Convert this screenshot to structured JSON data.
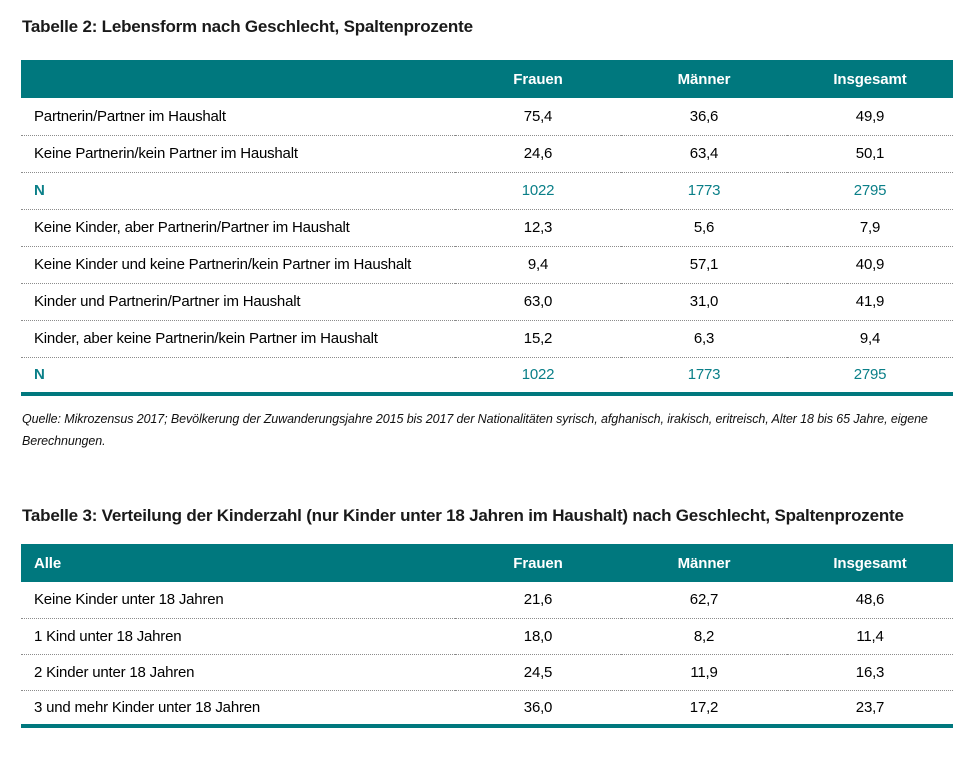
{
  "theme": {
    "accent": "#00787e",
    "n_value_color": "#0a7f88",
    "header_text": "#ffffff"
  },
  "table2": {
    "title": "Tabelle 2: Lebensform nach Geschlecht, Spaltenprozente",
    "columns": [
      "",
      "Frauen",
      "Männer",
      "Insgesamt"
    ],
    "rows": [
      {
        "label": "Partnerin/Partner im Haushalt",
        "frauen": "75,4",
        "maenner": "36,6",
        "insgesamt": "49,9"
      },
      {
        "label": "Keine Partnerin/kein Partner im Haushalt",
        "frauen": "24,6",
        "maenner": "63,4",
        "insgesamt": "50,1"
      },
      {
        "label": "N",
        "frauen": "1022",
        "maenner": "1773",
        "insgesamt": "2795"
      },
      {
        "label": "Keine Kinder, aber Partnerin/Partner im Haushalt",
        "frauen": "12,3",
        "maenner": "5,6",
        "insgesamt": "7,9"
      },
      {
        "label": "Keine Kinder und keine Partnerin/kein Partner im Haushalt",
        "frauen": "9,4",
        "maenner": "57,1",
        "insgesamt": "40,9"
      },
      {
        "label": "Kinder und Partnerin/Partner im Haushalt",
        "frauen": "63,0",
        "maenner": "31,0",
        "insgesamt": "41,9"
      },
      {
        "label": "Kinder, aber keine Partnerin/kein Partner im Haushalt",
        "frauen": "15,2",
        "maenner": "6,3",
        "insgesamt": "9,4"
      },
      {
        "label": "N",
        "frauen": "1022",
        "maenner": "1773",
        "insgesamt": "2795"
      }
    ],
    "source_note": "Quelle: Mikrozensus 2017; Bevölkerung der Zuwanderungsjahre 2015 bis 2017 der Nationalitäten syrisch, afghanisch, irakisch, eritreisch, Alter 18 bis 65 Jahre, eigene Berechnungen."
  },
  "table3": {
    "title": "Tabelle 3: Verteilung der Kinderzahl (nur Kinder unter 18 Jahren im Haushalt) nach Geschlecht, Spaltenprozente",
    "columns": [
      "Alle",
      "Frauen",
      "Männer",
      "Insgesamt"
    ],
    "rows": [
      {
        "label": "Keine Kinder unter 18 Jahren",
        "frauen": "21,6",
        "maenner": "62,7",
        "insgesamt": "48,6"
      },
      {
        "label": "1 Kind unter 18 Jahren",
        "frauen": "18,0",
        "maenner": "8,2",
        "insgesamt": "11,4"
      },
      {
        "label": "2 Kinder unter 18 Jahren",
        "frauen": "24,5",
        "maenner": "11,9",
        "insgesamt": "16,3"
      },
      {
        "label": "3 und mehr Kinder unter 18 Jahren",
        "frauen": "36,0",
        "maenner": "17,2",
        "insgesamt": "23,7"
      }
    ]
  },
  "chart_data": {
    "type": "table",
    "tables": [
      {
        "title": "Tabelle 2: Lebensform nach Geschlecht, Spaltenprozente",
        "columns": [
          "Frauen",
          "Männer",
          "Insgesamt"
        ],
        "rows": [
          [
            "Partnerin/Partner im Haushalt",
            75.4,
            36.6,
            49.9
          ],
          [
            "Keine Partnerin/kein Partner im Haushalt",
            24.6,
            63.4,
            50.1
          ],
          [
            "N",
            1022,
            1773,
            2795
          ],
          [
            "Keine Kinder, aber Partnerin/Partner im Haushalt",
            12.3,
            5.6,
            7.9
          ],
          [
            "Keine Kinder und keine Partnerin/kein Partner im Haushalt",
            9.4,
            57.1,
            40.9
          ],
          [
            "Kinder und Partnerin/Partner im Haushalt",
            63.0,
            31.0,
            41.9
          ],
          [
            "Kinder, aber keine Partnerin/kein Partner im Haushalt",
            15.2,
            6.3,
            9.4
          ],
          [
            "N",
            1022,
            1773,
            2795
          ]
        ]
      },
      {
        "title": "Tabelle 3: Verteilung der Kinderzahl (nur Kinder unter 18 Jahren im Haushalt) nach Geschlecht, Spaltenprozente",
        "columns": [
          "Frauen",
          "Männer",
          "Insgesamt"
        ],
        "rows": [
          [
            "Keine Kinder unter 18 Jahren",
            21.6,
            62.7,
            48.6
          ],
          [
            "1 Kind unter 18 Jahren",
            18.0,
            8.2,
            11.4
          ],
          [
            "2 Kinder unter 18 Jahren",
            24.5,
            11.9,
            16.3
          ],
          [
            "3 und mehr Kinder unter 18 Jahren",
            36.0,
            17.2,
            23.7
          ]
        ]
      }
    ]
  }
}
